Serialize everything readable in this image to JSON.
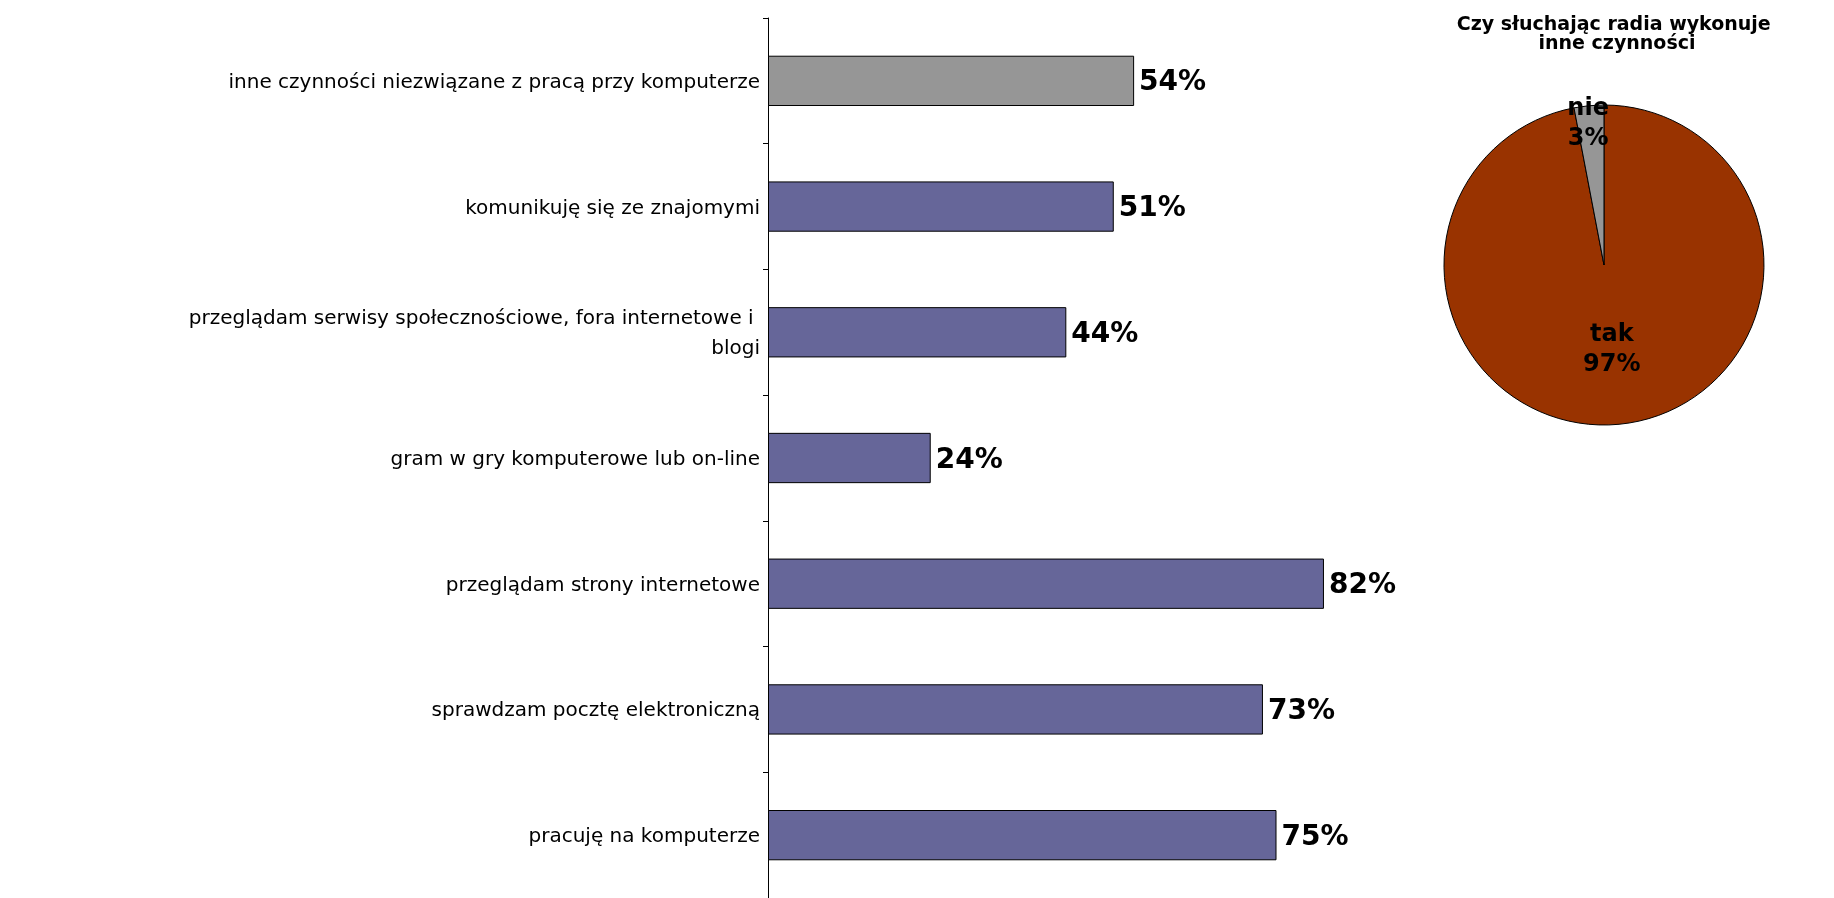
{
  "chart_data": [
    {
      "type": "bar",
      "orientation": "horizontal",
      "categories": [
        "inne czynności niezwiązane z pracą przy komputerze",
        "komunikuję się ze znajomymi",
        "przeglądam serwisy społecznościowe, fora internetowe i blogi",
        "gram w gry komputerowe lub on-line",
        "przeglądam strony internetowe",
        "sprawdzam pocztę elektroniczną",
        "pracuję na komputerze"
      ],
      "values": [
        54,
        51,
        44,
        24,
        82,
        73,
        75
      ],
      "colors": [
        "#969696",
        "#666699",
        "#666699",
        "#666699",
        "#666699",
        "#666699",
        "#666699"
      ],
      "value_labels": [
        "54%",
        "51%",
        "44%",
        "24%",
        "82%",
        "73%",
        "75%"
      ],
      "legend": false
    },
    {
      "type": "pie",
      "title": "Czy słuchając radia wykonuje inne czynności",
      "categories": [
        "tak",
        "nie"
      ],
      "values": [
        97,
        3
      ],
      "colors": [
        "#993300",
        "#969696"
      ],
      "value_labels": [
        "97%",
        "3%"
      ],
      "legend": false
    }
  ]
}
